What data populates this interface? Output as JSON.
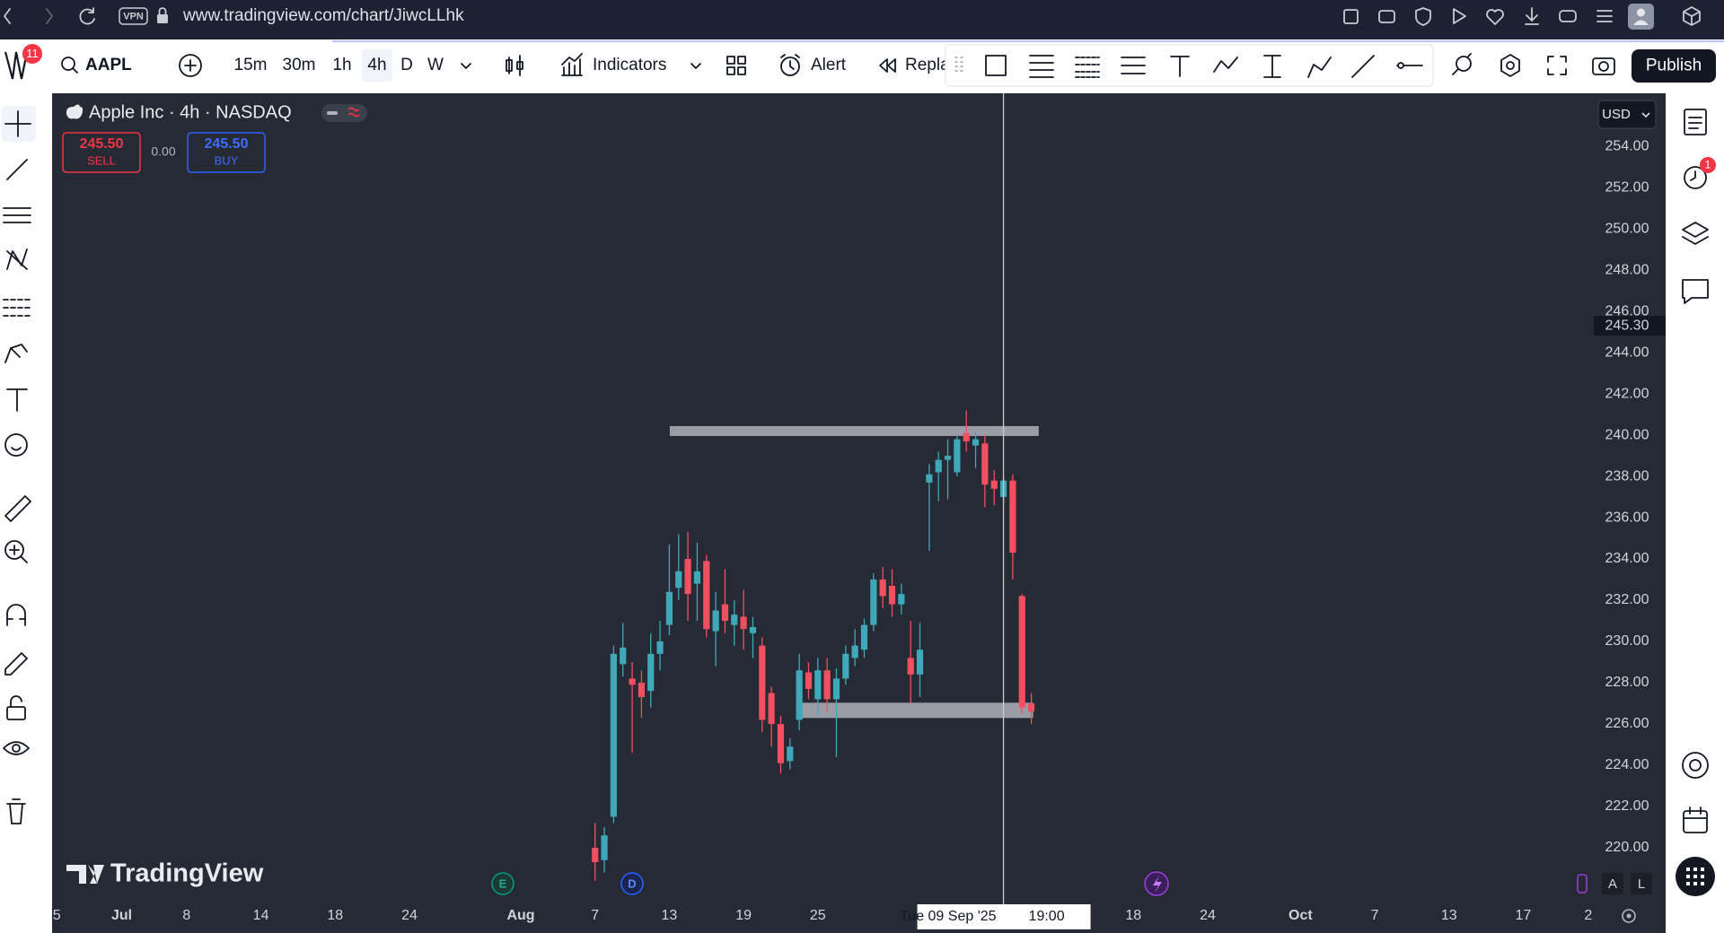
{
  "browser": {
    "vpn": "VPN",
    "url": "www.tradingview.com/chart/JiwcLLhk"
  },
  "toolbar": {
    "notifications": "11",
    "symbol": "AAPL",
    "intervals": [
      "15m",
      "30m",
      "1h",
      "4h",
      "D",
      "W"
    ],
    "indicators": "Indicators",
    "alert": "Alert",
    "replay": "Repla",
    "publish": "Publish"
  },
  "legend": {
    "title": "Apple Inc · 4h · NASDAQ",
    "sell_price": "245.50",
    "sell": "SELL",
    "spread": "0.00",
    "buy_price": "245.50",
    "buy": "BUY"
  },
  "currency": "USD",
  "sidebar": {
    "alerts_badge": "1"
  },
  "watermark": "TradingView",
  "events": [
    "E",
    "D"
  ],
  "scale_buttons": [
    "A",
    "L"
  ],
  "crosshair": {
    "date": "Tue 09 Sep '25",
    "time": "19:00",
    "index": 44,
    "price": {
      "value": 245.3,
      "label": "245.30"
    }
  },
  "chart_data": {
    "type": "candlestick",
    "up_color": "#3fa9b9",
    "down_color": "#f0505f",
    "open": [
      220.0,
      219.4,
      221.5,
      228.9,
      228.2,
      228.0,
      227.6,
      229.4,
      230.8,
      232.6,
      234.0,
      232.8,
      233.9,
      230.5,
      231.8,
      230.8,
      231.2,
      230.4,
      229.8,
      227.5,
      226.0,
      224.2,
      226.2,
      228.5,
      227.2,
      228.6,
      227.2,
      228.2,
      229.2,
      229.6,
      230.8,
      233.0,
      232.7,
      231.8,
      229.2,
      228.4,
      237.7,
      238.2,
      238.8,
      238.2,
      240.1,
      239.5,
      239.6,
      237.8,
      237.0,
      237.8,
      232.2,
      227.0
    ],
    "high": [
      221.2,
      221.0,
      229.8,
      230.9,
      229.0,
      228.6,
      230.4,
      231.0,
      234.7,
      235.2,
      235.3,
      234.8,
      234.2,
      232.4,
      233.5,
      232.0,
      232.5,
      231.2,
      230.2,
      227.8,
      226.4,
      225.3,
      229.4,
      229.0,
      229.2,
      229.2,
      228.7,
      229.8,
      230.6,
      231.1,
      233.3,
      233.6,
      233.5,
      232.8,
      231.0,
      230.9,
      238.6,
      239.2,
      239.8,
      240.0,
      241.2,
      240.2,
      240.0,
      238.3,
      238.0,
      238.1,
      232.3,
      227.5
    ],
    "low": [
      218.4,
      218.8,
      221.2,
      228.3,
      224.6,
      226.3,
      226.8,
      228.6,
      230.3,
      232.0,
      231.0,
      231.0,
      230.2,
      228.8,
      230.4,
      229.8,
      229.6,
      229.2,
      225.6,
      224.9,
      223.6,
      223.8,
      225.7,
      227.2,
      226.4,
      226.6,
      224.4,
      227.9,
      228.8,
      229.2,
      230.5,
      231.6,
      231.2,
      231.3,
      227.0,
      227.3,
      234.4,
      236.8,
      236.9,
      238.0,
      239.2,
      238.4,
      236.5,
      236.6,
      236.8,
      233.0,
      226.5,
      226.0
    ],
    "close": [
      219.3,
      220.6,
      229.4,
      229.7,
      227.9,
      227.3,
      229.4,
      230.0,
      232.4,
      233.4,
      232.3,
      233.4,
      230.6,
      231.5,
      231.0,
      231.3,
      230.6,
      230.7,
      226.2,
      226.0,
      224.1,
      224.9,
      228.6,
      227.7,
      228.6,
      227.2,
      228.2,
      229.4,
      229.8,
      230.8,
      233.0,
      232.2,
      231.8,
      232.3,
      228.4,
      229.6,
      238.1,
      238.8,
      239.0,
      239.8,
      239.7,
      239.8,
      237.6,
      237.4,
      237.8,
      234.3,
      226.8,
      226.6
    ],
    "zones": [
      {
        "x": [
          8.05,
          47.8
        ],
        "y": [
          239.96,
          240.44
        ],
        "color": "#a7aab2"
      },
      {
        "x": [
          21.8,
          47.2
        ],
        "y": [
          226.29,
          227.03
        ],
        "color": "#a7aab2"
      }
    ],
    "xlim": [
      -58.5,
      107.6
    ],
    "xticks": [
      {
        "value": -58,
        "label": "5"
      },
      {
        "value": -51,
        "label": "Jul"
      },
      {
        "value": -44,
        "label": "8"
      },
      {
        "value": -36,
        "label": "14"
      },
      {
        "value": -28,
        "label": "18"
      },
      {
        "value": -20,
        "label": "24"
      },
      {
        "value": -8,
        "label": "Aug"
      },
      {
        "value": 0,
        "label": "7"
      },
      {
        "value": 8,
        "label": "13"
      },
      {
        "value": 16,
        "label": "19"
      },
      {
        "value": 24,
        "label": "25"
      },
      {
        "value": 58,
        "label": "18"
      },
      {
        "value": 66,
        "label": "24"
      },
      {
        "value": 76,
        "label": "Oct"
      },
      {
        "value": 84,
        "label": "7"
      },
      {
        "value": 92,
        "label": "13"
      },
      {
        "value": 100,
        "label": "17"
      },
      {
        "value": 107,
        "label": "2"
      }
    ],
    "ylim": [
      217.39,
      256.57
    ],
    "yticks": [
      {
        "value": 220,
        "label": "220.00"
      },
      {
        "value": 222,
        "label": "222.00"
      },
      {
        "value": 224,
        "label": "224.00"
      },
      {
        "value": 226,
        "label": "226.00"
      },
      {
        "value": 228,
        "label": "228.00"
      },
      {
        "value": 230,
        "label": "230.00"
      },
      {
        "value": 232,
        "label": "232.00"
      },
      {
        "value": 234,
        "label": "234.00"
      },
      {
        "value": 236,
        "label": "236.00"
      },
      {
        "value": 238,
        "label": "238.00"
      },
      {
        "value": 240,
        "label": "240.00"
      },
      {
        "value": 242,
        "label": "242.00"
      },
      {
        "value": 244,
        "label": "244.00"
      },
      {
        "value": 246,
        "label": "246.00"
      },
      {
        "value": 248,
        "label": "248.00"
      },
      {
        "value": 250,
        "label": "250.00"
      },
      {
        "value": 252,
        "label": "252.00"
      },
      {
        "value": 254,
        "label": "254.00"
      }
    ],
    "grid": false
  }
}
